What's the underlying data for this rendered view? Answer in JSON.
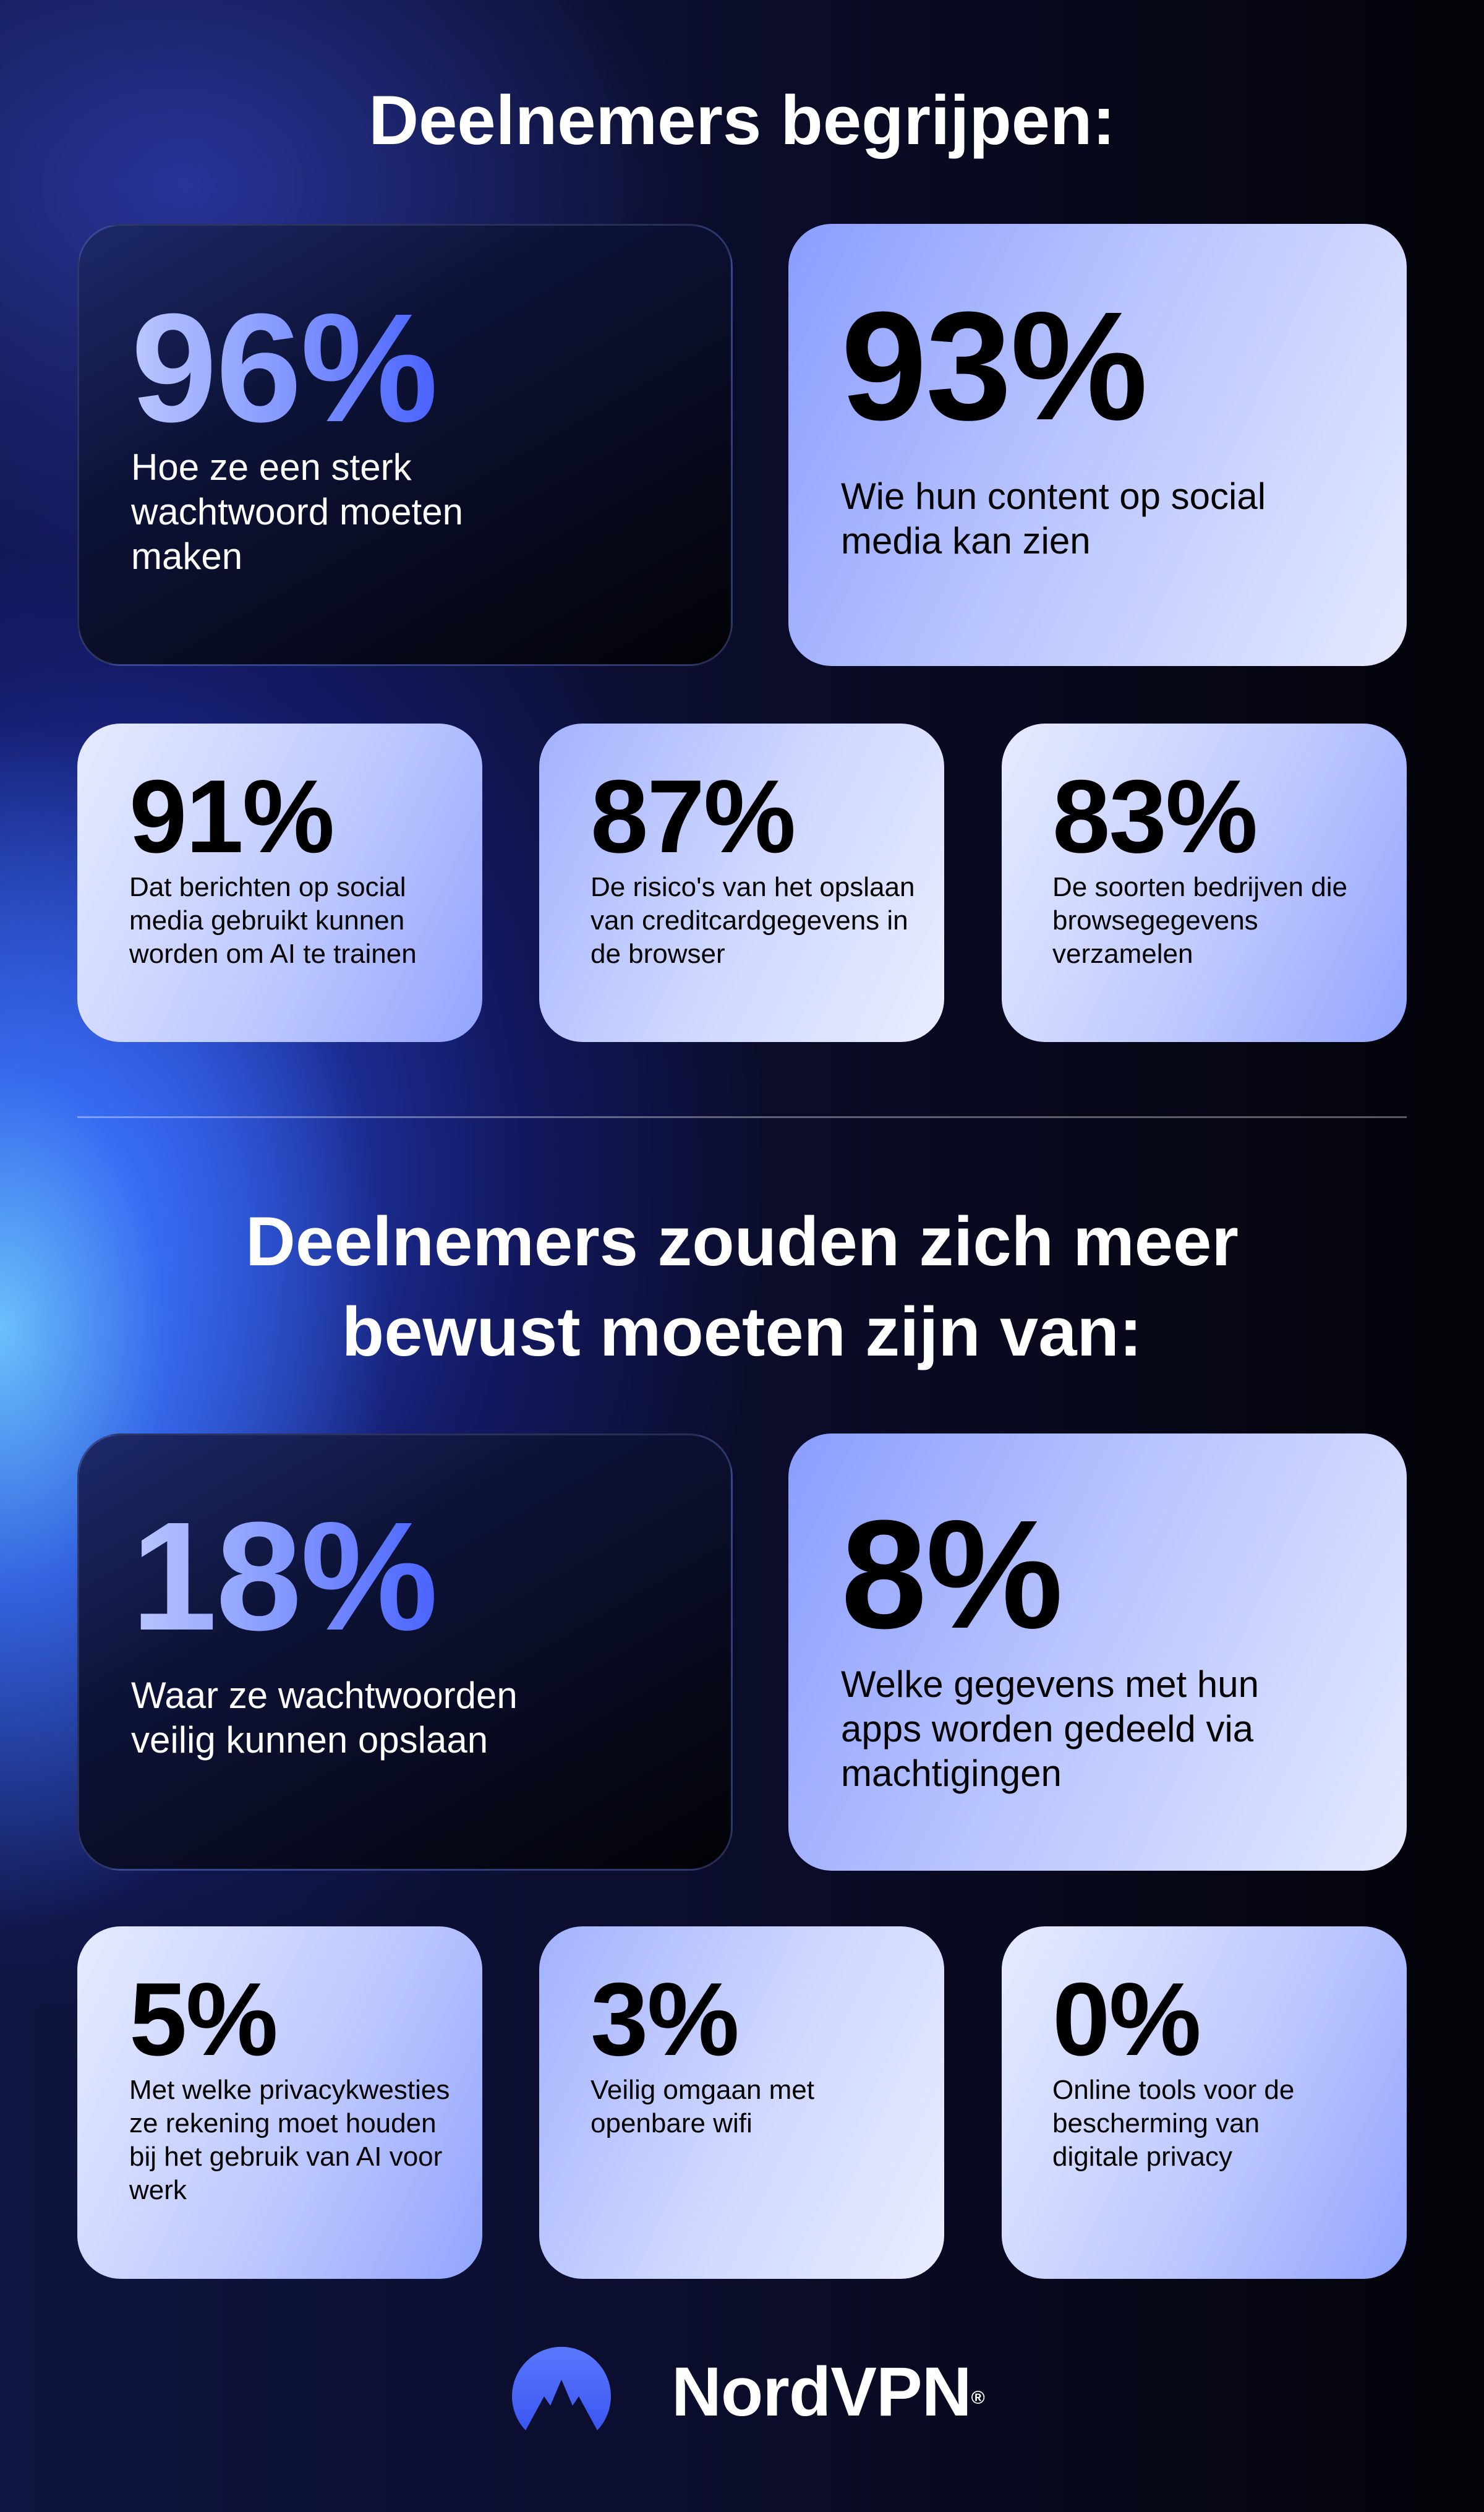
{
  "section1": {
    "title": "Deelnemers begrijpen:",
    "stats": [
      {
        "value": "96%",
        "text": "Hoe ze een sterk wachtwoord moeten maken"
      },
      {
        "value": "93%",
        "text": "Wie hun content op social media kan zien"
      },
      {
        "value": "91%",
        "text": "Dat berichten op social media gebruikt kunnen worden om AI te trainen"
      },
      {
        "value": "87%",
        "text": "De risico's van het opslaan van creditcardgegevens in de browser"
      },
      {
        "value": "83%",
        "text": "De soorten bedrijven die browsegegevens verzamelen"
      }
    ]
  },
  "section2": {
    "title_line1": "Deelnemers zouden zich meer",
    "title_line2": "bewust moeten zijn van:",
    "stats": [
      {
        "value": "18%",
        "text": "Waar ze wachtwoorden veilig kunnen opslaan"
      },
      {
        "value": "8%",
        "text": "Welke gegevens met hun apps worden gedeeld via machtigingen"
      },
      {
        "value": "5%",
        "text": "Met welke privacykwesties ze rekening moet houden bij het gebruik van AI voor werk"
      },
      {
        "value": "3%",
        "text": "Veilig omgaan met openbare wifi"
      },
      {
        "value": "0%",
        "text": "Online tools voor de bescherming van digitale privacy"
      }
    ]
  },
  "brand": {
    "name": "NordVPN",
    "registered": "®",
    "icon": "nordvpn-mountain-logo-icon",
    "accent": "#4a63ff"
  }
}
